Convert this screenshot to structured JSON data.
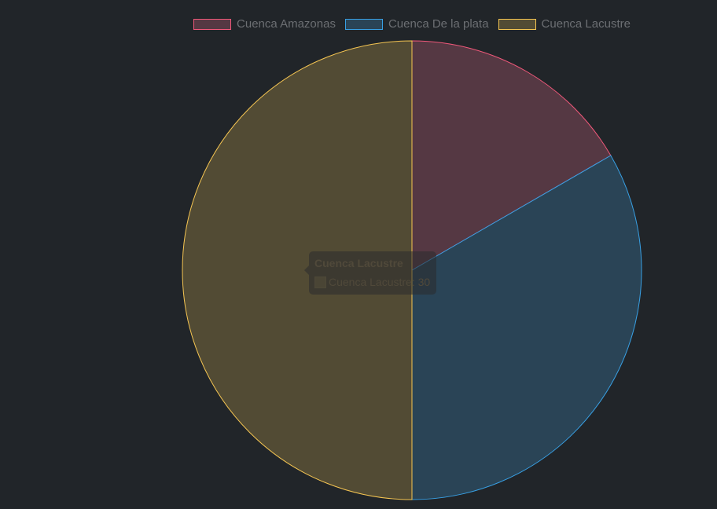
{
  "chart_data": {
    "type": "pie",
    "categories": [
      "Cuenca Amazonas",
      "Cuenca De la plata",
      "Cuenca Lacustre"
    ],
    "values": [
      10,
      20,
      30
    ],
    "colors": {
      "fill": [
        "#553843",
        "#2a4456",
        "#524b34"
      ],
      "border": [
        "#f0587a",
        "#38a0e4",
        "#f5c552"
      ]
    },
    "legend_position": "top",
    "start_angle": "top, clockwise"
  },
  "tooltip": {
    "title": "Cuenca Lacustre",
    "label": "Cuenca Lacustre: 30"
  }
}
